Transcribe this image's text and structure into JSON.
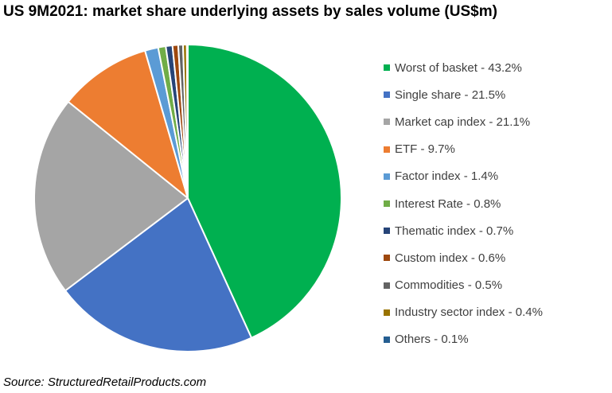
{
  "chart_data": {
    "type": "pie",
    "title": "US 9M2021: market share underlying assets by sales volume (US$m)",
    "source": "Source: StructuredRetailProducts.com",
    "legend_position": "right",
    "slices": [
      {
        "label": "Worst of basket - 43.2%",
        "value": 43.2,
        "color": "#00B050"
      },
      {
        "label": "Single share - 21.5%",
        "value": 21.5,
        "color": "#4472C4"
      },
      {
        "label": "Market cap index - 21.1%",
        "value": 21.1,
        "color": "#A5A5A5"
      },
      {
        "label": "ETF - 9.7%",
        "value": 9.7,
        "color": "#ED7D31"
      },
      {
        "label": "Factor index - 1.4%",
        "value": 1.4,
        "color": "#5B9BD5"
      },
      {
        "label": "Interest Rate - 0.8%",
        "value": 0.8,
        "color": "#70AD47"
      },
      {
        "label": "Thematic index - 0.7%",
        "value": 0.7,
        "color": "#264478"
      },
      {
        "label": "Custom index - 0.6%",
        "value": 0.6,
        "color": "#9E480E"
      },
      {
        "label": "Commodities - 0.5%",
        "value": 0.5,
        "color": "#636363"
      },
      {
        "label": "Industry sector index - 0.4%",
        "value": 0.4,
        "color": "#997300"
      },
      {
        "label": "Others - 0.1%",
        "value": 0.1,
        "color": "#255E91"
      }
    ]
  }
}
